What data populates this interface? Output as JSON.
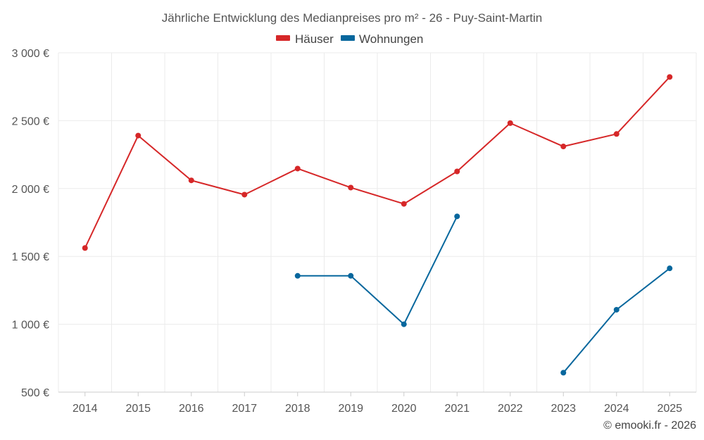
{
  "chart_data": {
    "type": "line",
    "title": "Jährliche Entwicklung des Medianpreises pro m² - 26 - Puy-Saint-Martin",
    "categories": [
      "2014",
      "2015",
      "2016",
      "2017",
      "2018",
      "2019",
      "2020",
      "2021",
      "2022",
      "2023",
      "2024",
      "2025"
    ],
    "ylim": [
      500,
      3000
    ],
    "yticks": [
      500,
      1000,
      1500,
      2000,
      2500,
      3000
    ],
    "ytick_labels": [
      "500 €",
      "1 000 €",
      "1 500 €",
      "2 000 €",
      "2 500 €",
      "3 000 €"
    ],
    "grid": true,
    "legend_position": "top-center",
    "series": [
      {
        "name": "Häuser",
        "color": "#d62728",
        "values": [
          1562,
          2390,
          2060,
          1955,
          2147,
          2007,
          1887,
          2126,
          2482,
          2310,
          2402,
          2822
        ]
      },
      {
        "name": "Wohnungen",
        "color": "#07679d",
        "values": [
          null,
          null,
          null,
          null,
          1357,
          1357,
          1000,
          1795,
          null,
          643,
          1107,
          1412
        ]
      }
    ]
  },
  "credit": "© emooki.fr - 2026"
}
